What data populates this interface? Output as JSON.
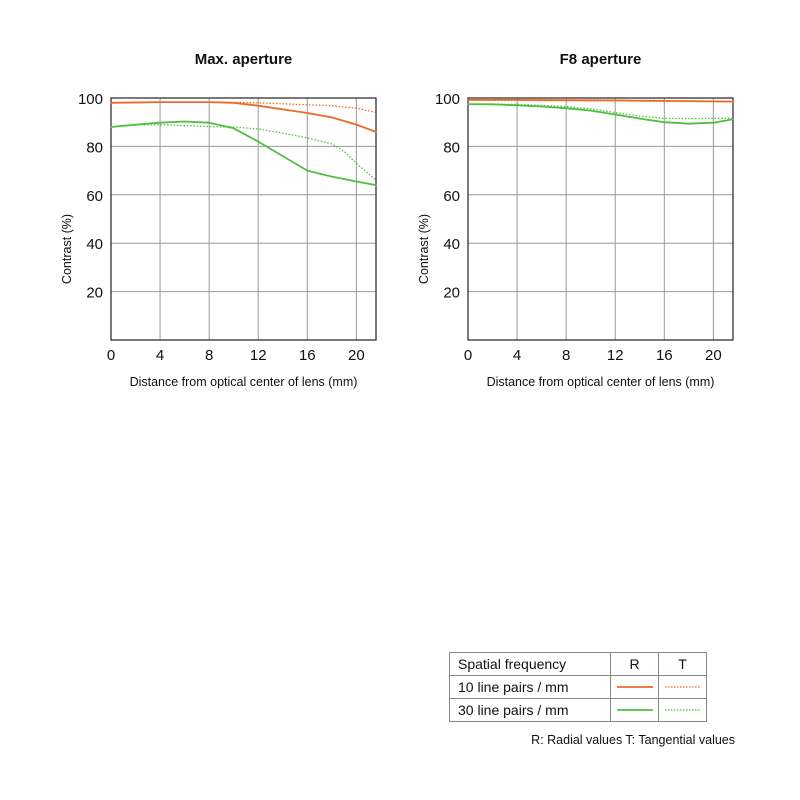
{
  "chart_data": [
    {
      "type": "line",
      "title": "Max. aperture",
      "xlabel": "Distance from optical center of lens (mm)",
      "ylabel": "Contrast (%)",
      "xlim": [
        0,
        21.6
      ],
      "ylim": [
        0,
        100
      ],
      "xticks": [
        0,
        4,
        8,
        12,
        16,
        20
      ],
      "yticks": [
        20,
        40,
        60,
        80,
        100
      ],
      "grid": true,
      "series": [
        {
          "name": "10 line pairs / mm",
          "kind": "R",
          "color": "#ec6a28",
          "dash": "solid",
          "x": [
            0,
            4,
            8,
            10,
            12,
            14,
            16,
            18,
            20,
            21.6
          ],
          "y": [
            98,
            98.3,
            98.3,
            98,
            96.8,
            95.3,
            93.8,
            92,
            89,
            86
          ]
        },
        {
          "name": "10 line pairs / mm",
          "kind": "T",
          "color": "#ec6a28",
          "dash": "dotted",
          "x": [
            0,
            4,
            8,
            12,
            16,
            18,
            20,
            21.6
          ],
          "y": [
            98,
            98.2,
            98.3,
            98,
            97.2,
            96.8,
            95.8,
            94
          ]
        },
        {
          "name": "30 line pairs / mm",
          "kind": "R",
          "color": "#4fbf3f",
          "dash": "solid",
          "x": [
            0,
            2,
            4,
            6,
            8,
            10,
            12,
            14,
            16,
            18,
            20,
            21.6
          ],
          "y": [
            88,
            89,
            89.8,
            90.3,
            89.8,
            87.5,
            82,
            76,
            70,
            67.5,
            65.5,
            64
          ]
        },
        {
          "name": "30 line pairs / mm",
          "kind": "T",
          "color": "#4fbf3f",
          "dash": "dotted",
          "x": [
            0,
            2,
            4,
            6,
            8,
            10,
            12,
            14,
            16,
            18,
            19,
            20,
            21.6
          ],
          "y": [
            88,
            88.8,
            89,
            88.6,
            88.2,
            88,
            87.2,
            85.5,
            83.5,
            81,
            78,
            73,
            66
          ]
        }
      ]
    },
    {
      "type": "line",
      "title": "F8 aperture",
      "xlabel": "Distance from optical center of lens (mm)",
      "ylabel": "Contrast (%)",
      "xlim": [
        0,
        21.6
      ],
      "ylim": [
        0,
        100
      ],
      "xticks": [
        0,
        4,
        8,
        12,
        16,
        20
      ],
      "yticks": [
        20,
        40,
        60,
        80,
        100
      ],
      "grid": true,
      "series": [
        {
          "name": "10 line pairs / mm",
          "kind": "R",
          "color": "#ec6a28",
          "dash": "solid",
          "x": [
            0,
            4,
            8,
            12,
            16,
            20,
            21.6
          ],
          "y": [
            99.2,
            99.2,
            99.1,
            99,
            98.8,
            98.6,
            98.5
          ]
        },
        {
          "name": "10 line pairs / mm",
          "kind": "T",
          "color": "#ec6a28",
          "dash": "dotted",
          "x": [
            0,
            4,
            8,
            12,
            16,
            20,
            21.6
          ],
          "y": [
            99,
            99,
            98.9,
            98.8,
            98.6,
            98.5,
            98.4
          ]
        },
        {
          "name": "30 line pairs / mm",
          "kind": "R",
          "color": "#4fbf3f",
          "dash": "solid",
          "x": [
            0,
            2,
            4,
            6,
            8,
            10,
            12,
            14,
            16,
            18,
            20,
            21.6
          ],
          "y": [
            97.5,
            97.4,
            97,
            96.5,
            95.8,
            94.8,
            93.2,
            91.5,
            90,
            89.4,
            89.8,
            91.2
          ]
        },
        {
          "name": "30 line pairs / mm",
          "kind": "T",
          "color": "#4fbf3f",
          "dash": "dotted",
          "x": [
            0,
            4,
            8,
            10,
            12,
            14,
            16,
            18,
            20,
            21.6
          ],
          "y": [
            97.4,
            97.4,
            96.5,
            95.5,
            94,
            92.5,
            91.6,
            91.5,
            91.6,
            91.6
          ]
        }
      ]
    }
  ],
  "legend": {
    "header": {
      "label": "Spatial frequency",
      "r": "R",
      "t": "T"
    },
    "rows": [
      {
        "label": "10 line pairs / mm",
        "color": "#ec6a28"
      },
      {
        "label": "30 line pairs / mm",
        "color": "#4fbf3f"
      }
    ],
    "note": "R: Radial values  T: Tangential values"
  }
}
